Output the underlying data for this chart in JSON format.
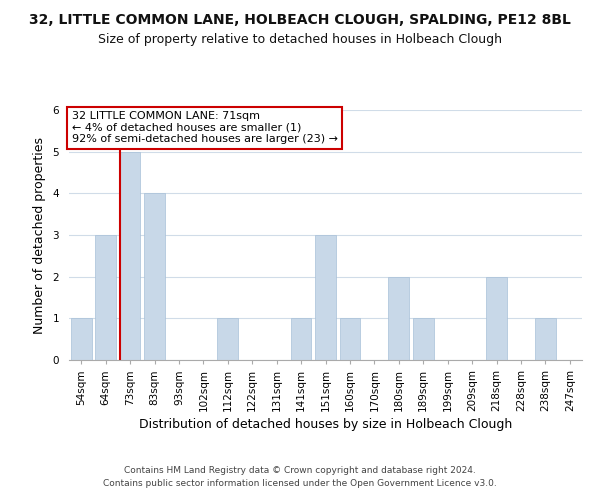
{
  "title": "32, LITTLE COMMON LANE, HOLBEACH CLOUGH, SPALDING, PE12 8BL",
  "subtitle": "Size of property relative to detached houses in Holbeach Clough",
  "xlabel": "Distribution of detached houses by size in Holbeach Clough",
  "ylabel": "Number of detached properties",
  "footer_line1": "Contains HM Land Registry data © Crown copyright and database right 2024.",
  "footer_line2": "Contains public sector information licensed under the Open Government Licence v3.0.",
  "annotation_line1": "32 LITTLE COMMON LANE: 71sqm",
  "annotation_line2": "← 4% of detached houses are smaller (1)",
  "annotation_line3": "92% of semi-detached houses are larger (23) →",
  "bar_labels": [
    "54sqm",
    "64sqm",
    "73sqm",
    "83sqm",
    "93sqm",
    "102sqm",
    "112sqm",
    "122sqm",
    "131sqm",
    "141sqm",
    "151sqm",
    "160sqm",
    "170sqm",
    "180sqm",
    "189sqm",
    "199sqm",
    "209sqm",
    "218sqm",
    "228sqm",
    "238sqm",
    "247sqm"
  ],
  "bar_values": [
    1,
    3,
    5,
    4,
    0,
    0,
    1,
    0,
    0,
    1,
    3,
    1,
    0,
    2,
    1,
    0,
    0,
    2,
    0,
    1,
    0
  ],
  "bar_color": "#c8d8e8",
  "bar_edge_color": "#a8c0d8",
  "highlight_bar_index": 2,
  "ylim": [
    0,
    6
  ],
  "yticks": [
    0,
    1,
    2,
    3,
    4,
    5,
    6
  ],
  "background_color": "#ffffff",
  "grid_color": "#d0dce8",
  "title_fontsize": 10,
  "subtitle_fontsize": 9,
  "axis_label_fontsize": 9,
  "tick_fontsize": 7.5,
  "footer_fontsize": 6.5,
  "annotation_fontsize": 8,
  "annotation_box_color": "#ffffff",
  "annotation_box_edge": "#cc0000",
  "red_line_color": "#cc0000"
}
